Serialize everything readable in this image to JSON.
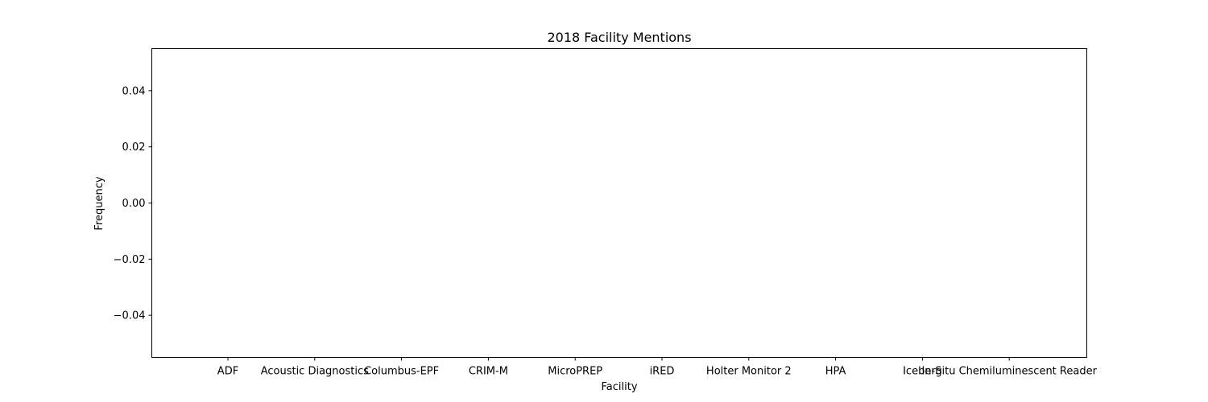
{
  "chart_data": {
    "type": "bar",
    "title": "2018 Facility Mentions",
    "xlabel": "Facility",
    "ylabel": "Frequency",
    "categories": [
      "ADF",
      "Acoustic Diagnostics",
      "Columbus-EPF",
      "CRIM-M",
      "MicroPREP",
      "iRED",
      "Holter Monitor 2",
      "HPA",
      "Iceberg",
      "In-Situ Chemiluminescent Reader"
    ],
    "values": [
      0,
      0,
      0,
      0,
      0,
      0,
      0,
      0,
      0,
      0
    ],
    "ylim": [
      -0.055,
      0.055
    ],
    "yticks": [
      -0.04,
      -0.02,
      0.0,
      0.02,
      0.04
    ],
    "ytick_labels": [
      "−0.04",
      "−0.02",
      "0.00",
      "0.02",
      "0.04"
    ],
    "grid": false,
    "colors": {
      "bar": "#1f77b4",
      "axis": "#000000"
    }
  }
}
